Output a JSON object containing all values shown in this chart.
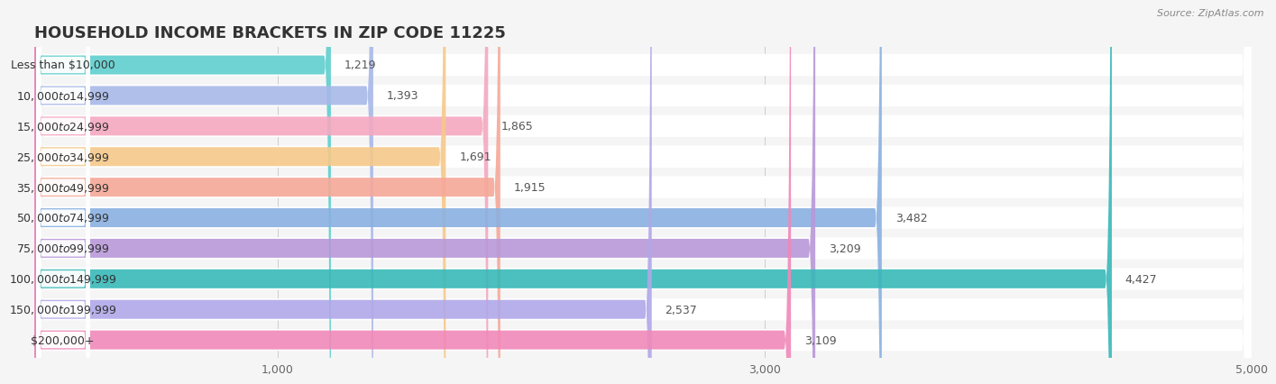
{
  "title": "HOUSEHOLD INCOME BRACKETS IN ZIP CODE 11225",
  "source": "Source: ZipAtlas.com",
  "categories": [
    "Less than $10,000",
    "$10,000 to $14,999",
    "$15,000 to $24,999",
    "$25,000 to $34,999",
    "$35,000 to $49,999",
    "$50,000 to $74,999",
    "$75,000 to $99,999",
    "$100,000 to $149,999",
    "$150,000 to $199,999",
    "$200,000+"
  ],
  "values": [
    1219,
    1393,
    1865,
    1691,
    1915,
    3482,
    3209,
    4427,
    2537,
    3109
  ],
  "bar_colors": [
    "#5ecfcd",
    "#a8b8e8",
    "#f4a8c0",
    "#f5c98a",
    "#f5a898",
    "#8ab0e0",
    "#b898d8",
    "#38b8b8",
    "#b0a8e8",
    "#f088b8"
  ],
  "xlim": [
    0,
    5000
  ],
  "xticks": [
    1000,
    3000,
    5000
  ],
  "background_color": "#f5f5f5",
  "title_fontsize": 13,
  "label_fontsize": 9,
  "value_fontsize": 9,
  "source_fontsize": 8
}
